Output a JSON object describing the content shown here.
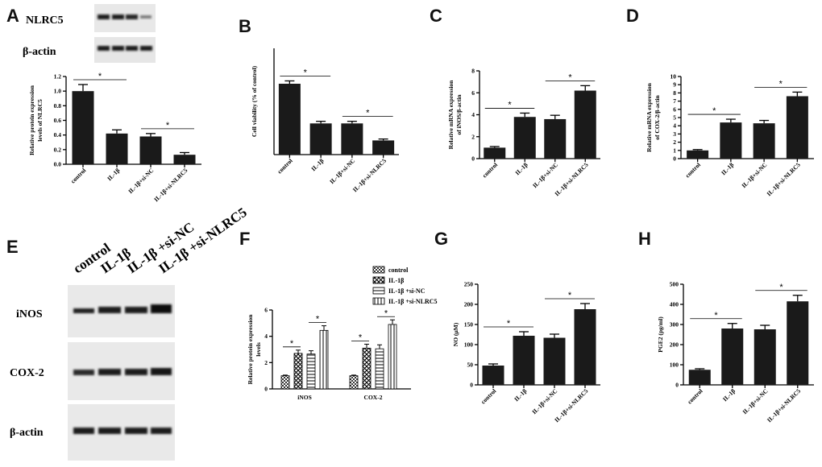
{
  "panel_letters": [
    "A",
    "B",
    "C",
    "D",
    "E",
    "F",
    "G",
    "H"
  ],
  "blot_A": {
    "bands": [
      "NLRC5",
      "β-actin"
    ]
  },
  "blot_E": {
    "lanes": [
      "control",
      "IL-1β",
      "IL-1β +si-NC",
      "IL-1β +si-NLRC5"
    ],
    "bands": [
      "iNOS",
      "COX-2",
      "β-actin"
    ]
  },
  "significance_mark": "*",
  "chart_data": [
    {
      "id": "A",
      "type": "bar",
      "categories": [
        "control",
        "IL-1β",
        "IL-1β+si-NC",
        "IL-1β+si-NLRC5"
      ],
      "values": [
        1.0,
        0.42,
        0.38,
        0.13
      ],
      "errors": [
        0.09,
        0.05,
        0.04,
        0.03
      ],
      "ylabel": [
        "Relative  protein expression",
        "levels of NLRC5"
      ],
      "ylim": [
        0,
        1.2
      ],
      "ticks": [
        "0.0",
        "0.2",
        "0.4",
        "0.6",
        "0.8",
        "1.0",
        "1.2"
      ],
      "significance": [
        [
          0,
          1
        ],
        [
          2,
          3
        ]
      ]
    },
    {
      "id": "B",
      "type": "bar",
      "categories": [
        "control",
        "IL-1β",
        "IL-1β+si-NC",
        "IL-1β+si-NLRC5"
      ],
      "values": [
        100,
        44,
        44,
        20
      ],
      "errors": [
        4,
        3,
        3,
        2
      ],
      "ylabel": [
        "Cell viability (% of control)"
      ],
      "ylim": [
        0,
        150
      ],
      "ticks": [],
      "significance": [
        [
          0,
          1
        ],
        [
          2,
          3
        ]
      ]
    },
    {
      "id": "C",
      "type": "bar",
      "categories": [
        "control",
        "IL-1β",
        "IL-1β+si-NC",
        "IL-1β+si-NLRC5"
      ],
      "values": [
        1.0,
        3.8,
        3.6,
        6.2
      ],
      "errors": [
        0.1,
        0.35,
        0.35,
        0.45
      ],
      "ylabel": [
        "Relative mRNA expression",
        "of iNOS/β-actin"
      ],
      "ylim": [
        0,
        8
      ],
      "ticks": [
        "0",
        "2",
        "4",
        "6",
        "8"
      ],
      "significance": [
        [
          0,
          1
        ],
        [
          2,
          3
        ]
      ]
    },
    {
      "id": "D",
      "type": "bar",
      "categories": [
        "control",
        "IL-1β",
        "IL-1β+si-NC",
        "IL-1β+si-NLRC5"
      ],
      "values": [
        1.0,
        4.4,
        4.3,
        7.6
      ],
      "errors": [
        0.1,
        0.4,
        0.35,
        0.5
      ],
      "ylabel": [
        "Relative mRNA expression",
        "of COX-2/β-actin"
      ],
      "ylim": [
        0,
        10
      ],
      "ticks": [
        "0",
        "1",
        "2",
        "3",
        "4",
        "5",
        "6",
        "7",
        "8",
        "9",
        "10"
      ],
      "significance": [
        [
          0,
          1
        ],
        [
          2,
          3
        ]
      ]
    },
    {
      "id": "F",
      "type": "bar",
      "categories": [
        "iNOS",
        "COX-2"
      ],
      "series": [
        {
          "name": "control",
          "values": [
            1.0,
            1.0
          ],
          "errors": [
            0.05,
            0.05
          ]
        },
        {
          "name": "IL-1β",
          "values": [
            2.7,
            3.1
          ],
          "errors": [
            0.25,
            0.3
          ]
        },
        {
          "name": "IL-1β +si-NC",
          "values": [
            2.65,
            3.05
          ],
          "errors": [
            0.25,
            0.3
          ]
        },
        {
          "name": "IL-1β +si-NLRC5",
          "values": [
            4.45,
            4.9
          ],
          "errors": [
            0.35,
            0.35
          ]
        }
      ],
      "ylabel": [
        "Relative  protein expression",
        "levels"
      ],
      "ylim": [
        0,
        6
      ],
      "ticks": [
        "0",
        "2",
        "4",
        "6"
      ],
      "significance": [
        [
          0,
          1
        ],
        [
          2,
          3
        ]
      ]
    },
    {
      "id": "G",
      "type": "bar",
      "categories": [
        "control",
        "IL-1β",
        "IL-1β+si-NC",
        "IL-1β+si-NLRC5"
      ],
      "values": [
        48,
        122,
        117,
        188
      ],
      "errors": [
        4,
        10,
        9,
        14
      ],
      "ylabel": [
        "NO (μM)"
      ],
      "ylim": [
        0,
        250
      ],
      "ticks": [
        "0",
        "50",
        "100",
        "150",
        "200",
        "250"
      ],
      "significance": [
        [
          0,
          1
        ],
        [
          2,
          3
        ]
      ]
    },
    {
      "id": "H",
      "type": "bar",
      "categories": [
        "control",
        "IL-1β",
        "IL-1β+si-NC",
        "IL-1β+si-NLRC5"
      ],
      "values": [
        75,
        280,
        276,
        415
      ],
      "errors": [
        5,
        25,
        20,
        30
      ],
      "ylabel": [
        "PGE2 (pg/ml)"
      ],
      "ylim": [
        0,
        500
      ],
      "ticks": [
        "0",
        "100",
        "200",
        "300",
        "400",
        "500"
      ],
      "significance": [
        [
          0,
          1
        ],
        [
          2,
          3
        ]
      ]
    }
  ]
}
